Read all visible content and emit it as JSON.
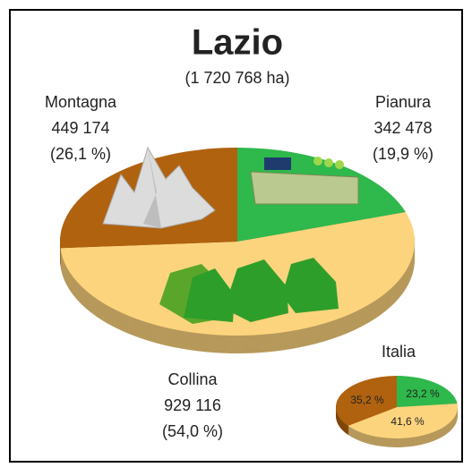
{
  "chart_data": [
    {
      "type": "pie3d",
      "title": "Lazio",
      "subtitle": "(1 720 768 ha)",
      "categories": [
        "Pianura",
        "Collina",
        "Montagna"
      ],
      "values": [
        342478,
        929116,
        449174
      ],
      "value_labels": [
        "342 478",
        "929 116",
        "449 174"
      ],
      "percentages": [
        19.9,
        54.0,
        26.1
      ],
      "percent_labels": [
        "(19,9 %)",
        "(54,0 %)",
        "(26,1 %)"
      ],
      "colors": [
        "#2fb84c",
        "#fdd47e",
        "#b0620f"
      ]
    },
    {
      "type": "pie3d",
      "title": "Italia",
      "values": [
        23.2,
        41.6,
        35.2
      ],
      "value_labels": [
        "23,2 %",
        "41,6 %",
        "35,2 %"
      ],
      "colors": [
        "#2fb84c",
        "#fdd47e",
        "#b0620f"
      ]
    }
  ]
}
